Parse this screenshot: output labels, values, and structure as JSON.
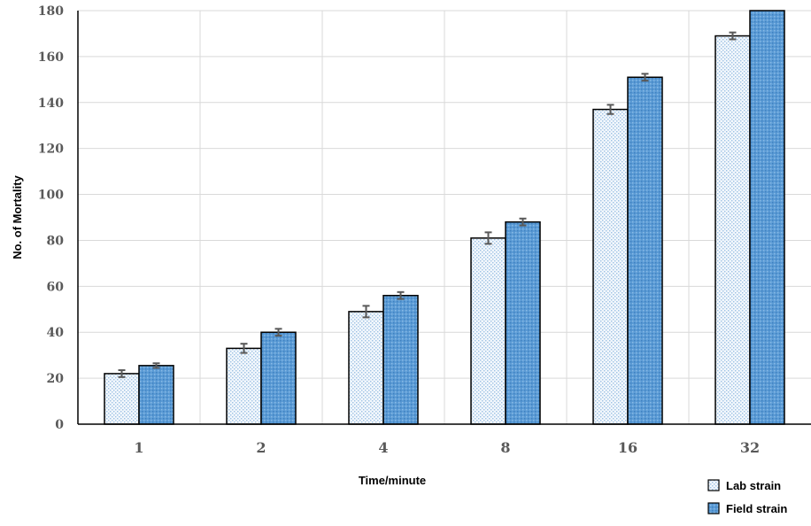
{
  "chart_data": {
    "type": "bar",
    "title": "",
    "xlabel": "Time/minute",
    "ylabel": "No. of Mortality",
    "categories": [
      "1",
      "2",
      "4",
      "8",
      "16",
      "32"
    ],
    "ylim": [
      0,
      180
    ],
    "yticks": [
      0,
      20,
      40,
      60,
      80,
      100,
      120,
      140,
      160,
      180
    ],
    "grid": true,
    "legend_position": "bottom-right",
    "error_bars": true,
    "series": [
      {
        "name": "Lab strain",
        "values": [
          22,
          33,
          49,
          81,
          137,
          169
        ],
        "errors": [
          1.5,
          2,
          2.5,
          2.5,
          2,
          1.5
        ],
        "color": "#dce9f4"
      },
      {
        "name": "Field strain",
        "values": [
          25.5,
          40,
          56,
          88,
          151,
          180
        ],
        "errors": [
          1,
          1.5,
          1.5,
          1.5,
          1.5,
          0
        ],
        "color": "#5b9bd5"
      }
    ]
  }
}
